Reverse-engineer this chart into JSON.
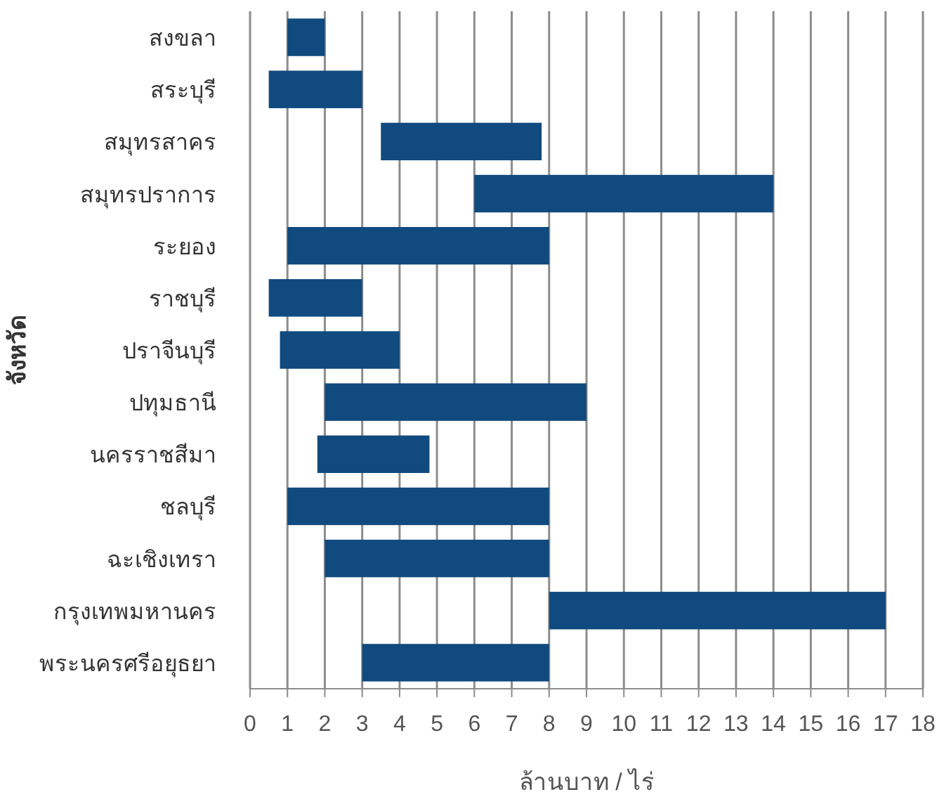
{
  "chart_data": {
    "type": "bar",
    "orientation": "horizontal",
    "xlabel": "ล้านบาท / ไร่",
    "ylabel": "จังหวัด",
    "categories": [
      "สงขลา",
      "สระบุรี",
      "สมุทรสาคร",
      "สมุทรปราการ",
      "ระยอง",
      "ราชบุรี",
      "ปราจีนบุรี",
      "ปทุมธานี",
      "นครราชสีมา",
      "ชลบุรี",
      "ฉะเชิงเทรา",
      "กรุงเทพมหานคร",
      "พระนครศรีอยุธยา"
    ],
    "base": [
      1,
      0.5,
      3.5,
      6,
      1,
      0.5,
      0.8,
      2,
      1.8,
      1,
      2,
      8,
      3
    ],
    "values": [
      1,
      2.5,
      4.3,
      8,
      7,
      2.5,
      3.2,
      7,
      3,
      7,
      6,
      9,
      5
    ],
    "color": "#104a7e",
    "xlim": [
      0,
      18
    ],
    "xticks": [
      0,
      1,
      2,
      3,
      4,
      5,
      6,
      7,
      8,
      9,
      10,
      11,
      12,
      13,
      14,
      15,
      16,
      17,
      18
    ],
    "grid": "x"
  }
}
